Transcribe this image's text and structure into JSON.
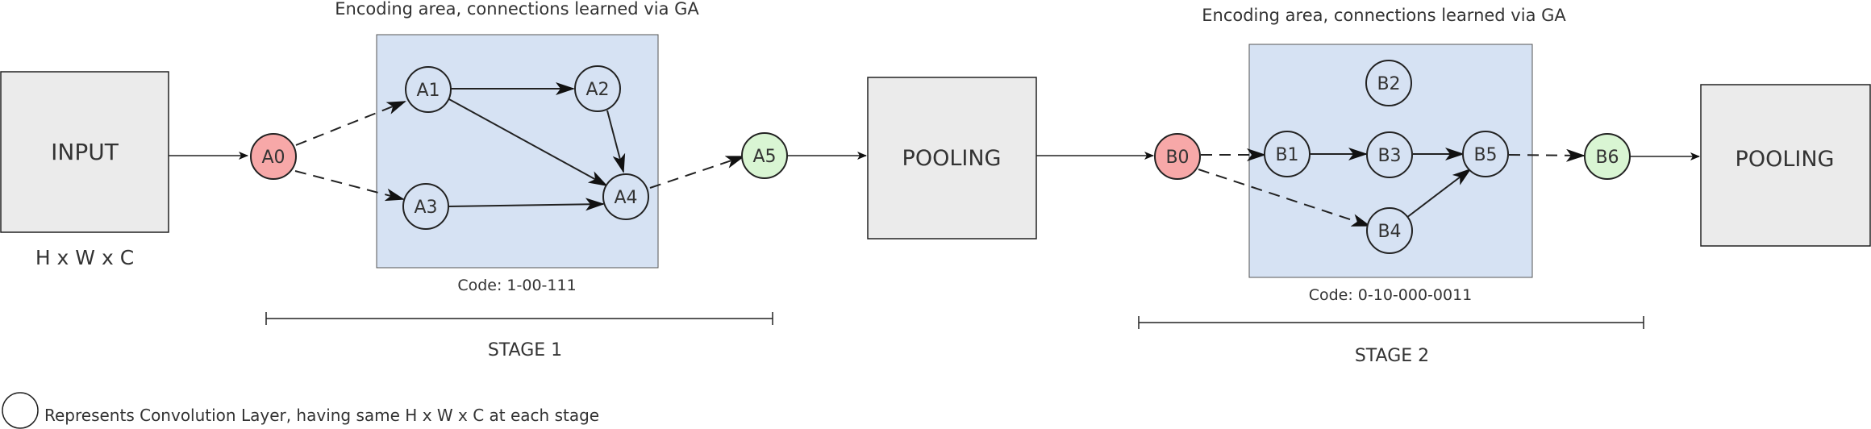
{
  "input_block": {
    "label": "INPUT",
    "dims": "H x W x C"
  },
  "stage1": {
    "area_caption": "Encoding area, connections learned via GA",
    "code": "Code: 1-00-111",
    "label": "STAGE 1",
    "nodes": {
      "a0": "A0",
      "a1": "A1",
      "a2": "A2",
      "a3": "A3",
      "a4": "A4",
      "a5": "A5"
    },
    "pooling": "POOLING"
  },
  "stage2": {
    "area_caption": "Encoding area, connections learned via GA",
    "code": "Code: 0-10-000-0011",
    "label": "STAGE 2",
    "nodes": {
      "b0": "B0",
      "b1": "B1",
      "b2": "B2",
      "b3": "B3",
      "b4": "B4",
      "b5": "B5",
      "b6": "B6"
    },
    "pooling": "POOLING"
  },
  "legend": {
    "text": "Represents Convolution Layer, having same H x W x C at each stage"
  },
  "colors": {
    "encoding_area": "#d6e2f3",
    "block_fill": "#ebebeb",
    "input_node": "#f7a8a8",
    "output_node": "#d9f5d3",
    "stroke": "#222222"
  }
}
